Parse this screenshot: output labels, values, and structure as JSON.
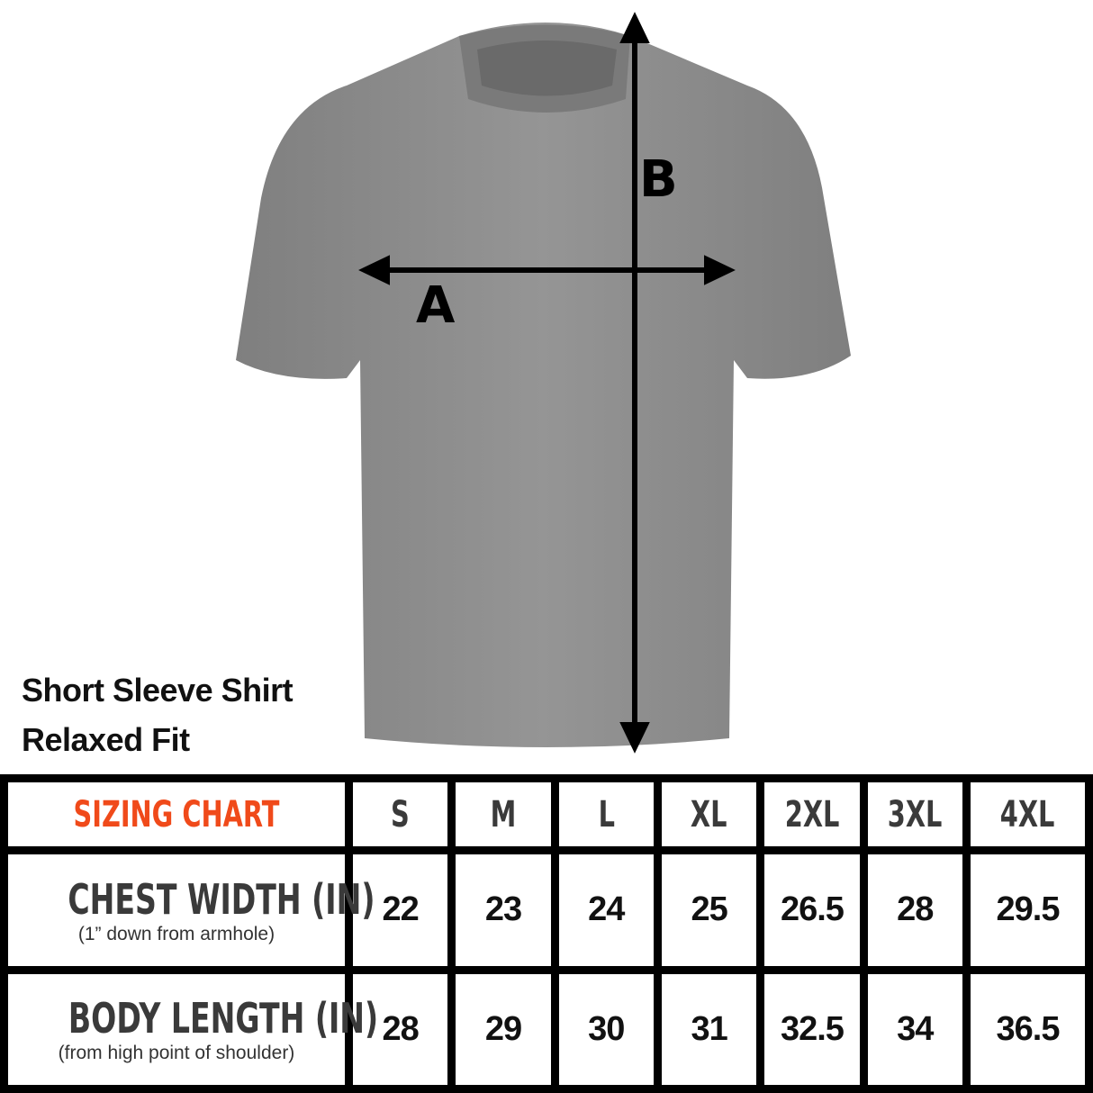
{
  "product": {
    "title": "Short Sleeve Shirt",
    "fit": "Relaxed Fit",
    "shirt_color": "#8c8c8c"
  },
  "diagram": {
    "label_a": "A",
    "label_b": "B"
  },
  "table": {
    "title": "SIZING CHART",
    "title_color": "#f04a1a",
    "sizes": [
      "S",
      "M",
      "L",
      "XL",
      "2XL",
      "3XL",
      "4XL"
    ],
    "rows": [
      {
        "label": "CHEST WIDTH (IN)",
        "note": "(1” down from armhole)",
        "values": [
          "22",
          "23",
          "24",
          "25",
          "26.5",
          "28",
          "29.5"
        ]
      },
      {
        "label": "BODY LENGTH (IN)",
        "note": "(from high point of shoulder)",
        "values": [
          "28",
          "29",
          "30",
          "31",
          "32.5",
          "34",
          "36.5"
        ]
      }
    ]
  }
}
